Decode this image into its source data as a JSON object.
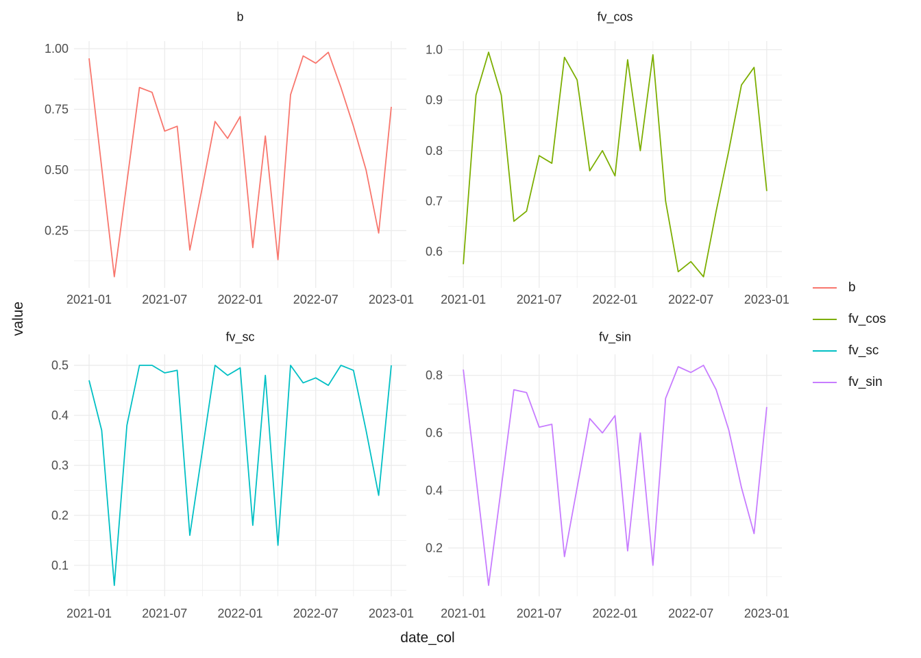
{
  "figure": {
    "background": "#FFFFFF",
    "grid_color": "#EBEBEB",
    "tick_label_color": "#4D4D4D",
    "text_color": "#1A1A1A",
    "y_axis_title": "value",
    "x_axis_title": "date_col"
  },
  "legend": {
    "items": [
      {
        "label": "b",
        "color": "#F8766D"
      },
      {
        "label": "fv_cos",
        "color": "#7CAE00"
      },
      {
        "label": "fv_sc",
        "color": "#00BFC4"
      },
      {
        "label": "fv_sin",
        "color": "#C77CFF"
      }
    ]
  },
  "chart_data": {
    "type": "line",
    "title": "",
    "xlabel": "date_col",
    "ylabel": "value",
    "grid": true,
    "legend_position": "right",
    "x": [
      "2021-01",
      "2021-02",
      "2021-03",
      "2021-04",
      "2021-05",
      "2021-06",
      "2021-07",
      "2021-08",
      "2021-09",
      "2021-10",
      "2021-11",
      "2021-12",
      "2022-01",
      "2022-02",
      "2022-03",
      "2022-04",
      "2022-05",
      "2022-06",
      "2022-07",
      "2022-08",
      "2022-09",
      "2022-10",
      "2022-11",
      "2022-12",
      "2023-01"
    ],
    "x_tick_labels": [
      "2021-01",
      "2021-07",
      "2022-01",
      "2022-07",
      "2023-01"
    ],
    "x_tick_months": [
      0,
      6,
      12,
      18,
      24
    ],
    "x_domain_months": [
      -1.2,
      25.2
    ],
    "facets": [
      {
        "title": "b",
        "color": "#F8766D",
        "y_ticks": [
          0.25,
          0.5,
          0.75,
          1.0
        ],
        "y_tick_labels": [
          "0.25",
          "0.50",
          "0.75",
          "1.00"
        ],
        "y_domain": [
          0.014,
          1.031
        ],
        "values": [
          0.96,
          0.51,
          0.06,
          0.45,
          0.84,
          0.82,
          0.66,
          0.68,
          0.17,
          0.43,
          0.7,
          0.63,
          0.72,
          0.18,
          0.64,
          0.13,
          0.81,
          0.97,
          0.94,
          0.985,
          0.84,
          0.68,
          0.5,
          0.24,
          0.76
        ]
      },
      {
        "title": "fv_cos",
        "color": "#7CAE00",
        "y_ticks": [
          0.6,
          0.7,
          0.8,
          0.9,
          1.0
        ],
        "y_tick_labels": [
          "0.6",
          "0.7",
          "0.8",
          "0.9",
          "1.0"
        ],
        "y_domain": [
          0.528,
          1.017
        ],
        "values": [
          0.575,
          0.91,
          0.995,
          0.91,
          0.66,
          0.68,
          0.79,
          0.775,
          0.985,
          0.94,
          0.76,
          0.8,
          0.75,
          0.98,
          0.8,
          0.99,
          0.7,
          0.56,
          0.58,
          0.55,
          0.68,
          0.8,
          0.93,
          0.965,
          0.72
        ]
      },
      {
        "title": "fv_sc",
        "color": "#00BFC4",
        "y_ticks": [
          0.1,
          0.2,
          0.3,
          0.4,
          0.5
        ],
        "y_tick_labels": [
          "0.1",
          "0.2",
          "0.3",
          "0.4",
          "0.5"
        ],
        "y_domain": [
          0.038,
          0.522
        ],
        "values": [
          0.47,
          0.37,
          0.06,
          0.38,
          0.5,
          0.5,
          0.485,
          0.49,
          0.16,
          0.33,
          0.5,
          0.48,
          0.495,
          0.18,
          0.48,
          0.14,
          0.5,
          0.465,
          0.475,
          0.46,
          0.5,
          0.49,
          0.37,
          0.24,
          0.5
        ]
      },
      {
        "title": "fv_sin",
        "color": "#C77CFF",
        "y_ticks": [
          0.2,
          0.4,
          0.6,
          0.8
        ],
        "y_tick_labels": [
          "0.2",
          "0.4",
          "0.6",
          "0.8"
        ],
        "y_domain": [
          0.032,
          0.873
        ],
        "values": [
          0.82,
          0.445,
          0.07,
          0.41,
          0.75,
          0.74,
          0.62,
          0.63,
          0.17,
          0.41,
          0.65,
          0.6,
          0.66,
          0.19,
          0.6,
          0.14,
          0.72,
          0.83,
          0.81,
          0.835,
          0.75,
          0.61,
          0.41,
          0.25,
          0.69
        ]
      }
    ]
  }
}
